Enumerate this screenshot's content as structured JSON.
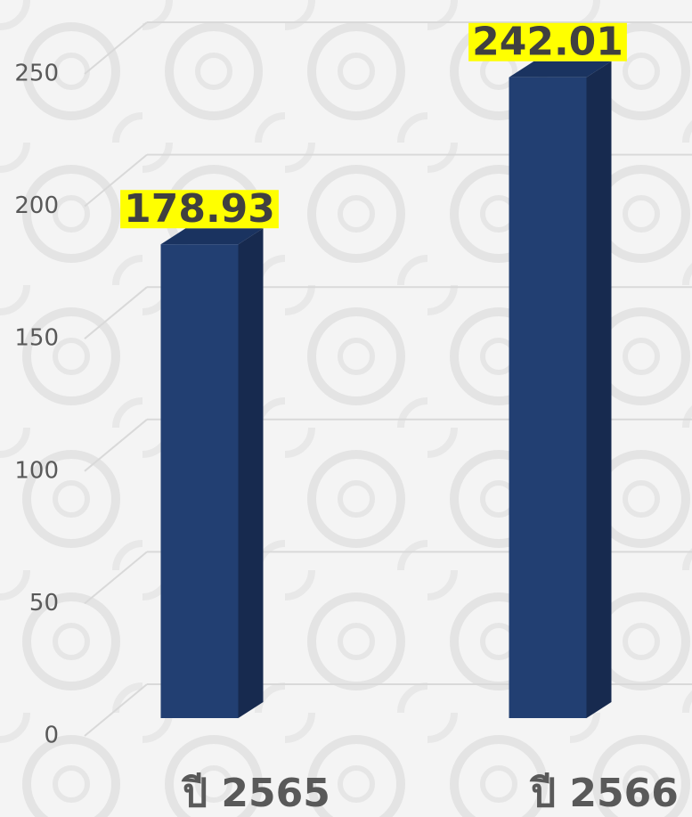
{
  "chart_data": {
    "type": "bar3d",
    "categories": [
      "ปี 2565",
      "ปี 2566"
    ],
    "values": [
      178.93,
      242.01
    ],
    "color": "#223f72",
    "ylim": [
      0,
      250
    ],
    "yticks": [
      0,
      50,
      100,
      150,
      200,
      250
    ],
    "grid": true
  }
}
